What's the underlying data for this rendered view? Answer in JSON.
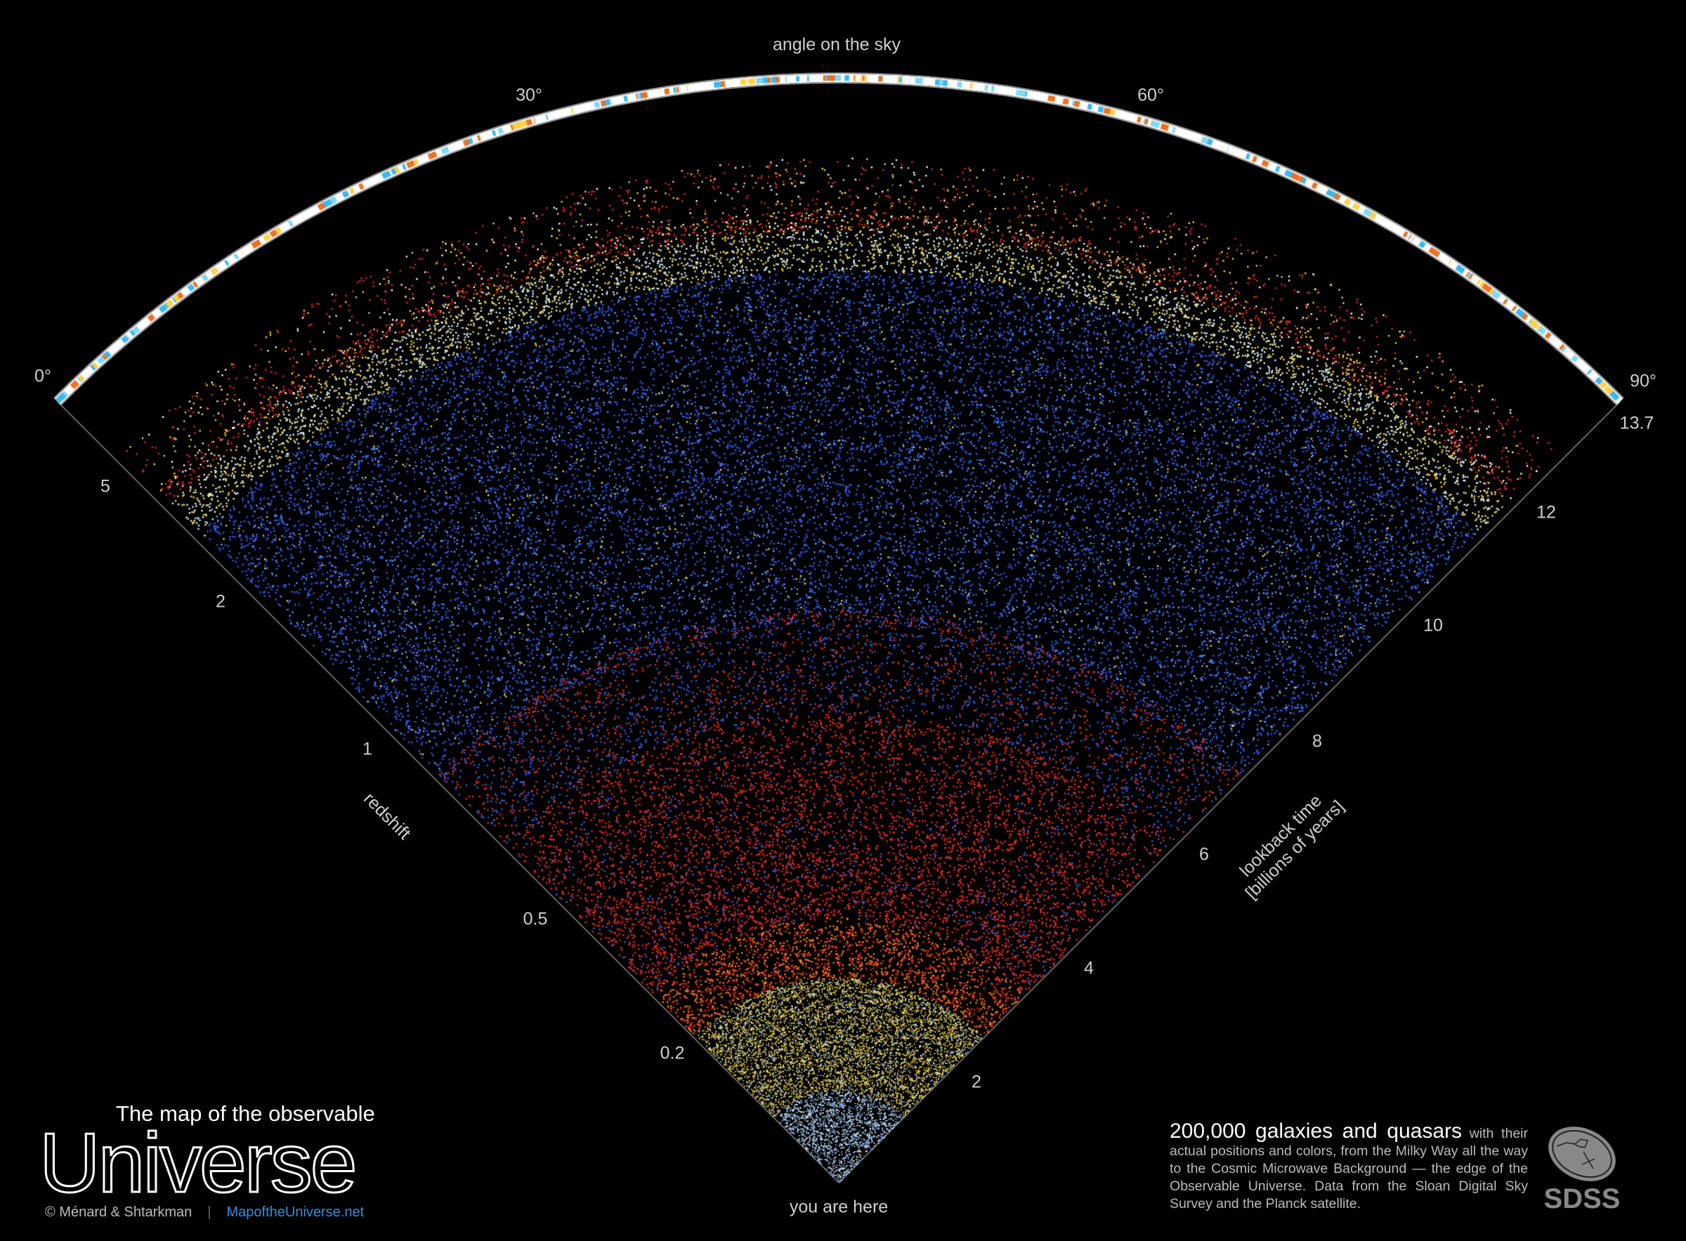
{
  "top_axis": {
    "title": "angle on the sky",
    "ticks": [
      "0°",
      "30°",
      "60°",
      "90°"
    ]
  },
  "redshift_axis": {
    "title": "redshift",
    "ticks": [
      "5",
      "2",
      "1",
      "0.5",
      "0.2"
    ]
  },
  "lookback_axis": {
    "title_line1": "lookback time",
    "title_line2": "[billions of years]",
    "ticks": [
      "13.7",
      "12",
      "10",
      "8",
      "6",
      "4",
      "2"
    ]
  },
  "origin_label": "you are here",
  "title": {
    "small": "The map of the observable",
    "big": "Universe"
  },
  "credit": {
    "authors": "© Ménard & Shtarkman",
    "separator": "|",
    "website": "MapoftheUniverse.net"
  },
  "description": {
    "lead": "200,000 galaxies and quasars",
    "body": " with their actual positions and colors, from the Milky Way all the way to the Cosmic Microwave Background — the edge of the Observable Universe. Data from the Sloan Digital Sky Survey and the Planck satellite."
  },
  "logo": {
    "text": "SDSS",
    "color": "#888888"
  },
  "colors": {
    "background": "#000000",
    "nearby_galaxies": "#a8cfff",
    "yellow_galaxies": "#f3d23a",
    "red_galaxies": "#e8281e",
    "quasars": "#2c5cf0",
    "link": "#3c8ed8"
  }
}
